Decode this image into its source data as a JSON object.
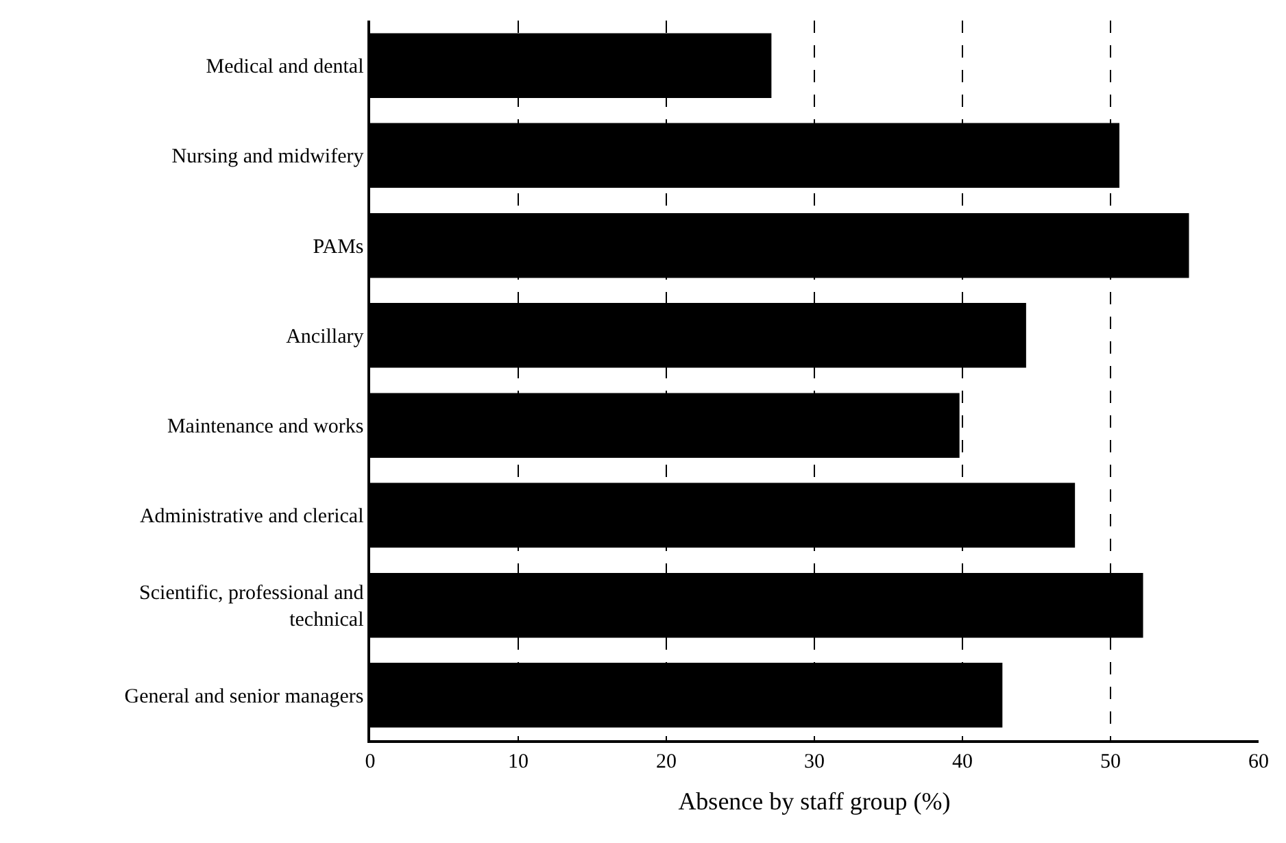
{
  "chart_data": {
    "type": "bar",
    "orientation": "horizontal",
    "xlabel": "Absence by staff group (%)",
    "categories": [
      "Medical and dental",
      "Nursing and midwifery",
      "PAMs",
      "Ancillary",
      "Maintenance and works",
      "Administrative and clerical",
      "Scientific, professional and technical",
      "General and senior managers"
    ],
    "values": [
      27.1,
      50.6,
      55.3,
      44.3,
      39.8,
      47.6,
      52.2,
      42.7
    ],
    "color": "#000000",
    "xlim": [
      0,
      60
    ],
    "xticks": [
      0,
      10,
      20,
      30,
      40,
      50,
      60
    ],
    "grid": "x",
    "line_style": "dashed"
  }
}
